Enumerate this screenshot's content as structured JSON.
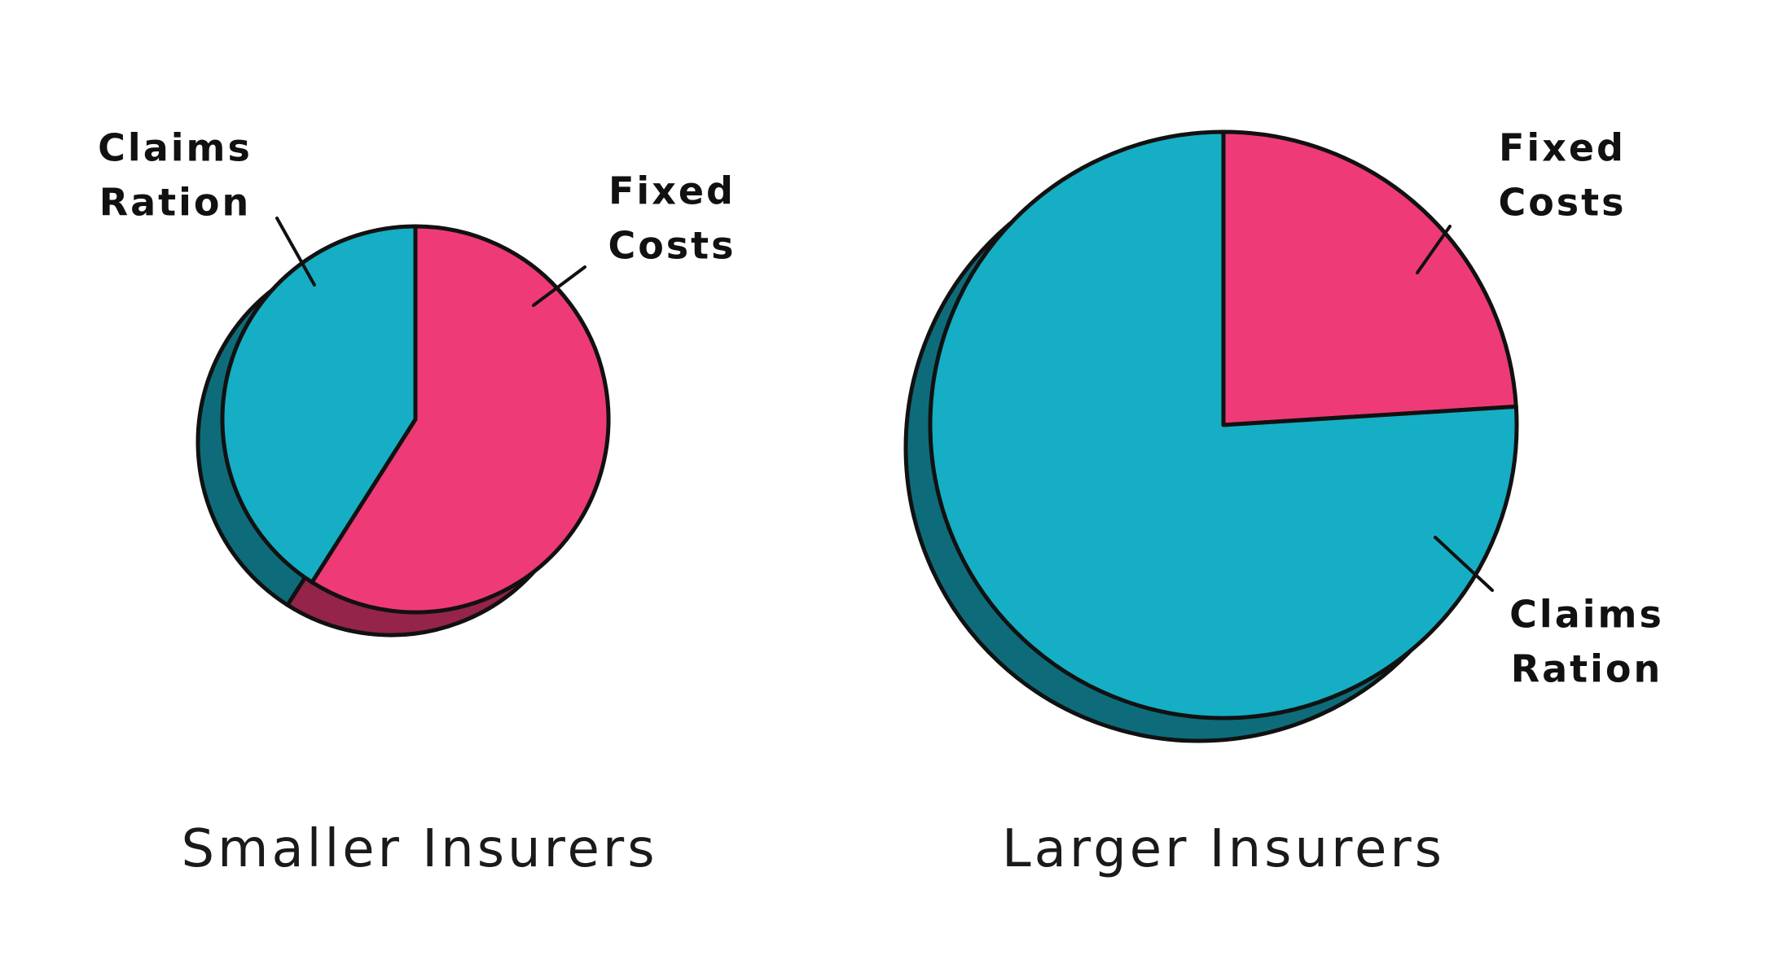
{
  "chart_data": [
    {
      "type": "pie",
      "title": "Smaller Insurers",
      "categories": [
        "Fixed Costs",
        "Claims Ration"
      ],
      "values": [
        59,
        41
      ],
      "colors": [
        "#ef3a78",
        "#16aec4"
      ]
    },
    {
      "type": "pie",
      "title": "Larger Insurers",
      "categories": [
        "Fixed Costs",
        "Claims Ration"
      ],
      "values": [
        24,
        76
      ],
      "colors": [
        "#ef3a78",
        "#16aec4"
      ]
    }
  ]
}
